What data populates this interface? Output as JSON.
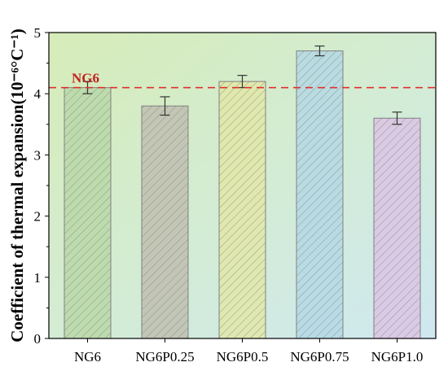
{
  "chart_data": {
    "type": "bar",
    "categories": [
      "NG6",
      "NG6P0.25",
      "NG6P0.5",
      "NG6P0.75",
      "NG6P1.0"
    ],
    "values": [
      4.1,
      3.8,
      4.2,
      4.7,
      3.6
    ],
    "errors": [
      0.1,
      0.15,
      0.1,
      0.08,
      0.1
    ],
    "ylabel": "Coefficient of thermal expansion(10⁻⁶°C⁻¹)",
    "xlabel": "",
    "ylim": [
      0,
      5
    ],
    "yticks": [
      "0",
      "1",
      "2",
      "3",
      "4",
      "5"
    ],
    "reference_line": {
      "label": "NG6",
      "value": 4.1,
      "color": "#e03030",
      "style": "dashed"
    },
    "bar_colors": [
      "#b8d8a8",
      "#c0c0b0",
      "#e2e8a8",
      "#b4d8e4",
      "#dcc4e4"
    ],
    "hatch": "diagonal",
    "background": "gradient green-to-blue",
    "grid": false
  }
}
